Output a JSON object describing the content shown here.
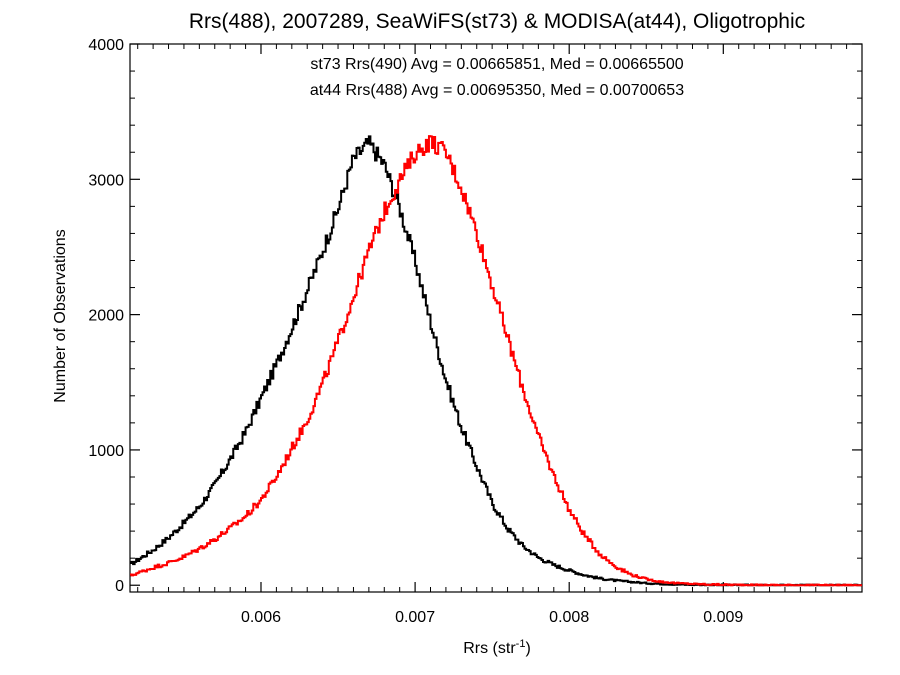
{
  "chart_data": {
    "type": "line",
    "title": "Rrs(488), 2007289, SeaWiFS(st73) & MODISA(at44), Oligotrophic",
    "xlabel": "Rrs (str",
    "xlabel_sup": "-1",
    "xlabel_end": ")",
    "ylabel": "Number of Observations",
    "xlim": [
      0.00515,
      0.0099
    ],
    "ylim": [
      -50,
      4000
    ],
    "x_ticks": [
      {
        "value": 0.006,
        "label": "0.006"
      },
      {
        "value": 0.007,
        "label": "0.007"
      },
      {
        "value": 0.008,
        "label": "0.008"
      },
      {
        "value": 0.009,
        "label": "0.009"
      }
    ],
    "y_ticks": [
      {
        "value": 0,
        "label": "0"
      },
      {
        "value": 1000,
        "label": "1000"
      },
      {
        "value": 2000,
        "label": "2000"
      },
      {
        "value": 3000,
        "label": "3000"
      },
      {
        "value": 4000,
        "label": "4000"
      }
    ],
    "grid": false,
    "legend_position": "top-center",
    "series": [
      {
        "name": "st73 Rrs(490) Avg = 0.00665851, Med = 0.00665500",
        "color": "#000000",
        "x": [
          0.00515,
          0.0053,
          0.0054,
          0.0055,
          0.0056,
          0.0057,
          0.0058,
          0.0059,
          0.006,
          0.0061,
          0.0062,
          0.0063,
          0.0064,
          0.0065,
          0.0066,
          0.0067,
          0.0068,
          0.0069,
          0.007,
          0.0071,
          0.0072,
          0.0073,
          0.0074,
          0.0075,
          0.0076,
          0.0077,
          0.0078,
          0.0079,
          0.008,
          0.0081,
          0.0082,
          0.0083,
          0.0084,
          0.0085,
          0.0086,
          0.0087,
          0.0088,
          0.0089,
          0.009,
          0.0092,
          0.0094,
          0.0096,
          0.0099
        ],
        "y": [
          150,
          260,
          350,
          460,
          580,
          740,
          930,
          1130,
          1380,
          1630,
          1900,
          2180,
          2470,
          2780,
          3150,
          3270,
          3110,
          2790,
          2400,
          1950,
          1520,
          1170,
          880,
          610,
          420,
          290,
          205,
          150,
          110,
          75,
          50,
          35,
          25,
          15,
          10,
          6,
          4,
          3,
          2,
          1,
          0,
          0,
          0
        ]
      },
      {
        "name": "at44 Rrs(488) Avg = 0.00695350, Med = 0.00700653",
        "color": "#ff0000",
        "x": [
          0.00515,
          0.0053,
          0.0054,
          0.0055,
          0.0056,
          0.0057,
          0.0058,
          0.0059,
          0.006,
          0.0061,
          0.0062,
          0.0063,
          0.0064,
          0.0065,
          0.0066,
          0.0067,
          0.0068,
          0.0069,
          0.007,
          0.0071,
          0.0072,
          0.0073,
          0.0074,
          0.0075,
          0.0076,
          0.0077,
          0.0078,
          0.0079,
          0.008,
          0.0081,
          0.0082,
          0.0083,
          0.0084,
          0.0085,
          0.0086,
          0.0087,
          0.0088,
          0.0089,
          0.009,
          0.0092,
          0.0094,
          0.0096,
          0.0099
        ],
        "y": [
          70,
          130,
          165,
          210,
          270,
          340,
          420,
          510,
          630,
          800,
          1010,
          1220,
          1490,
          1800,
          2130,
          2470,
          2760,
          2990,
          3190,
          3280,
          3200,
          2940,
          2610,
          2220,
          1830,
          1450,
          1100,
          810,
          560,
          370,
          230,
          140,
          80,
          45,
          25,
          15,
          10,
          6,
          4,
          2,
          1,
          0,
          0
        ]
      }
    ]
  }
}
